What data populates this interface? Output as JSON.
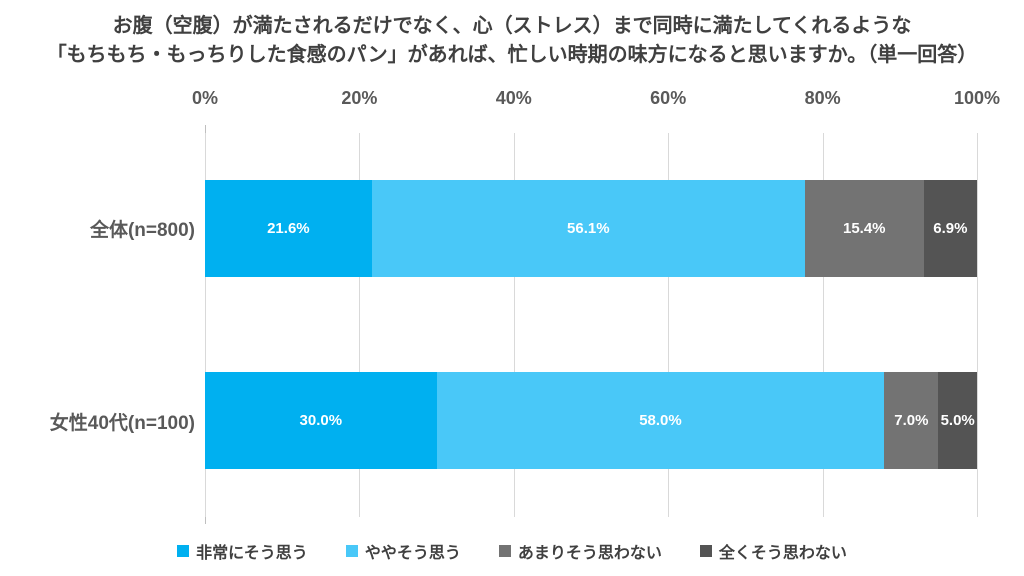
{
  "title": {
    "line1": "お腹（空腹）が満たされるだけでなく、心（ストレス）まで同時に満たしてくれるような",
    "line2": "「もちもち・もっちりした食感のパン」があれば、忙しい時期の味方になると思いますか。（単一回答）"
  },
  "chart_data": {
    "type": "bar",
    "orientation": "horizontal",
    "stacked": true,
    "unit": "%",
    "categories": [
      "全体(n=800)",
      "女性40代(n=100)"
    ],
    "series": [
      {
        "name": "非常にそう思う",
        "color": "#00B0F0",
        "values": [
          21.6,
          30.0
        ]
      },
      {
        "name": "ややそう思う",
        "color": "#49C8F8",
        "values": [
          56.1,
          58.0
        ]
      },
      {
        "name": "あまりそう思わない",
        "color": "#737373",
        "values": [
          15.4,
          7.0
        ]
      },
      {
        "name": "全くそう思わない",
        "color": "#545454",
        "values": [
          6.9,
          5.0
        ]
      }
    ],
    "value_labels": [
      [
        "21.6%",
        "56.1%",
        "15.4%",
        "6.9%"
      ],
      [
        "30.0%",
        "58.0%",
        "7.0%",
        "5.0%"
      ]
    ],
    "x_axis": {
      "ticks": [
        "0%",
        "20%",
        "40%",
        "60%",
        "80%",
        "100%"
      ],
      "range": [
        0,
        100
      ]
    },
    "grid": true,
    "legend_position": "bottom",
    "colors": {
      "title_text": "#404040",
      "axis_text": "#595959",
      "category_text": "#595959",
      "value_label_text": "#ffffff",
      "gridline": "#d9d9d9",
      "background": "#ffffff"
    }
  }
}
